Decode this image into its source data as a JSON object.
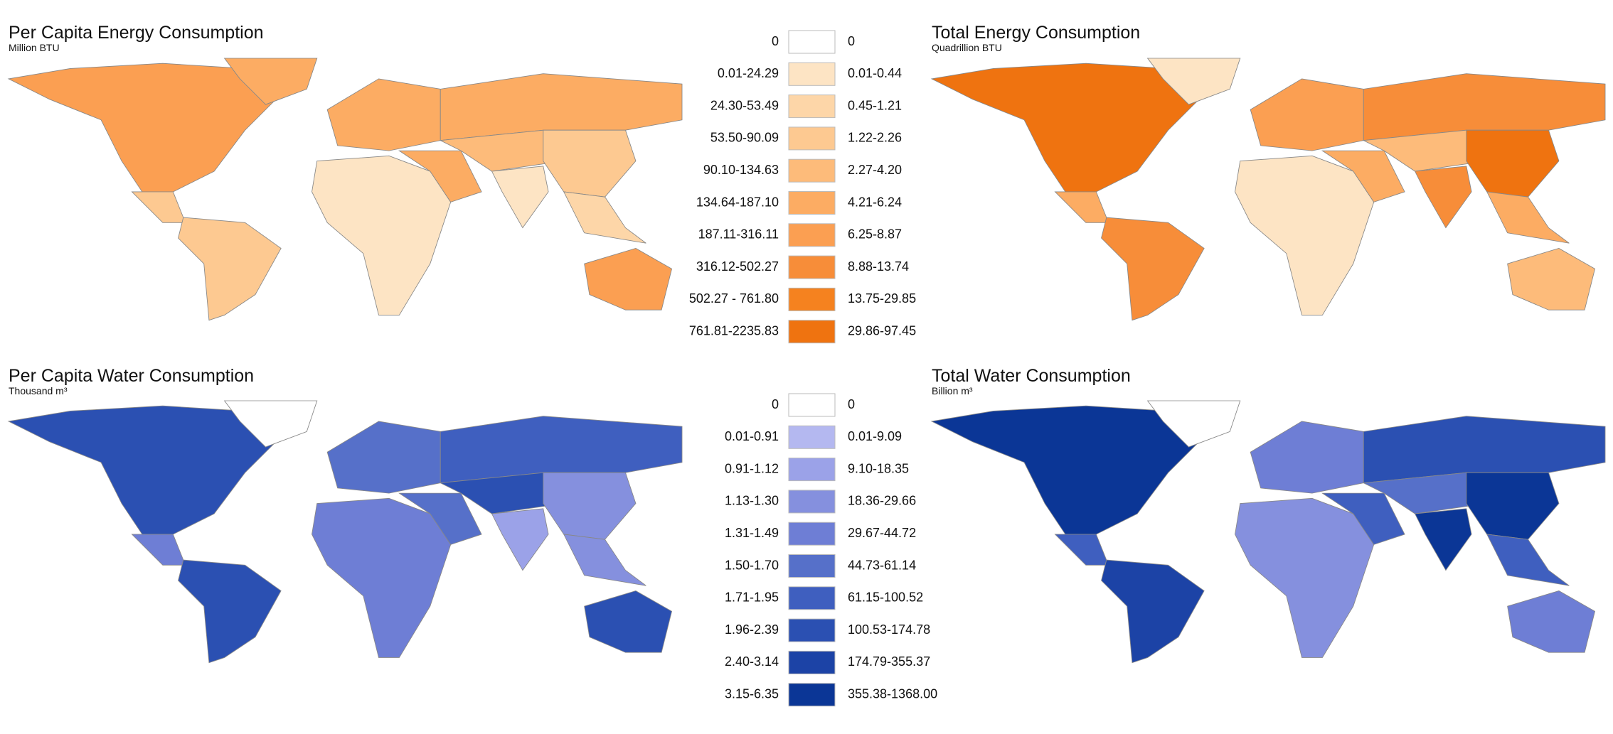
{
  "energy": {
    "per_capita": {
      "title": "Per Capita Energy Consumption",
      "subtitle": "Million BTU"
    },
    "total": {
      "title": "Total Energy Consumption",
      "subtitle": "Quadrillion BTU"
    },
    "legend": {
      "per_capita": [
        "0",
        "0.01-24.29",
        "24.30-53.49",
        "53.50-90.09",
        "90.10-134.63",
        "134.64-187.10",
        "187.11-316.11",
        "316.12-502.27",
        "502.27 - 761.80",
        "761.81-2235.83"
      ],
      "total": [
        "0",
        "0.01-0.44",
        "0.45-1.21",
        "1.22-2.26",
        "2.27-4.20",
        "4.21-6.24",
        "6.25-8.87",
        "8.88-13.74",
        "13.75-29.85",
        "29.86-97.45"
      ],
      "colors": [
        "#ffffff",
        "#fde4c4",
        "#fdd6a8",
        "#fdc991",
        "#fdbb7a",
        "#fcac63",
        "#fb9f52",
        "#f78d39",
        "#f5821f",
        "#ef7310"
      ]
    }
  },
  "water": {
    "per_capita": {
      "title": "Per Capita Water Consumption",
      "subtitle": "Thousand m³"
    },
    "total": {
      "title": "Total Water Consumption",
      "subtitle": "Billion m³"
    },
    "legend": {
      "per_capita": [
        "0",
        "0.01-0.91",
        "0.91-1.12",
        "1.13-1.30",
        "1.31-1.49",
        "1.50-1.70",
        "1.71-1.95",
        "1.96-2.39",
        "2.40-3.14",
        "3.15-6.35"
      ],
      "total": [
        "0",
        "0.01-9.09",
        "9.10-18.35",
        "18.36-29.66",
        "29.67-44.72",
        "44.73-61.14",
        "61.15-100.52",
        "100.53-174.78",
        "174.79-355.37",
        "355.38-1368.00"
      ],
      "colors": [
        "#ffffff",
        "#b4b8f0",
        "#9ba2e8",
        "#8590de",
        "#6e7ed5",
        "#5670c9",
        "#3f5fbf",
        "#2b50b2",
        "#1c43a6",
        "#0b3696"
      ]
    }
  }
}
